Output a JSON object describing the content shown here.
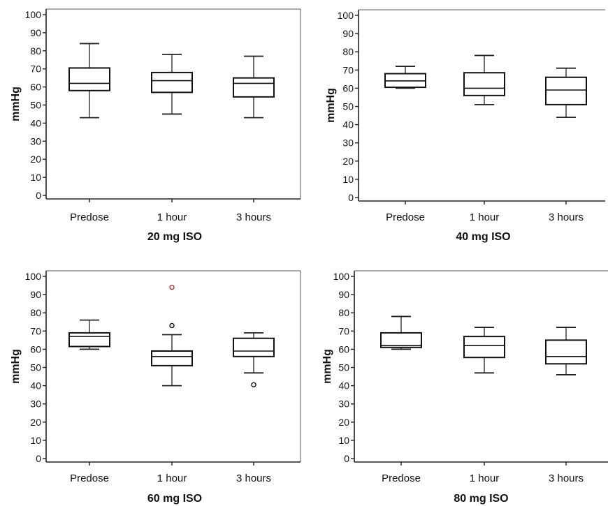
{
  "chart_data": [
    {
      "type": "box",
      "title": "20 mg ISO",
      "ylabel": "mmHg",
      "ylim": [
        0,
        100
      ],
      "yticks": [
        0,
        10,
        20,
        30,
        40,
        50,
        60,
        70,
        80,
        90,
        100
      ],
      "categories": [
        "Predose",
        "1 hour",
        "3 hours"
      ],
      "boxes": [
        {
          "min": 43,
          "q1": 58,
          "median": 62,
          "q3": 70.5,
          "max": 84,
          "outliers": []
        },
        {
          "min": 45,
          "q1": 57,
          "median": 63.5,
          "q3": 68,
          "max": 78,
          "outliers": []
        },
        {
          "min": 43,
          "q1": 54.5,
          "median": 62,
          "q3": 65,
          "max": 77,
          "outliers": []
        }
      ]
    },
    {
      "type": "box",
      "title": "40 mg ISO",
      "ylabel": "mmHg",
      "ylim": [
        0,
        100
      ],
      "yticks": [
        0,
        10,
        20,
        30,
        40,
        50,
        60,
        70,
        80,
        90,
        100
      ],
      "categories": [
        "Predose",
        "1 hour",
        "3 hours"
      ],
      "boxes": [
        {
          "min": 60,
          "q1": 60.5,
          "median": 64,
          "q3": 68,
          "max": 72,
          "outliers": []
        },
        {
          "min": 51,
          "q1": 56,
          "median": 60,
          "q3": 68.5,
          "max": 78,
          "outliers": []
        },
        {
          "min": 44,
          "q1": 51,
          "median": 59,
          "q3": 66,
          "max": 71,
          "outliers": []
        }
      ]
    },
    {
      "type": "box",
      "title": "60 mg ISO",
      "ylabel": "mmHg",
      "ylim": [
        0,
        100
      ],
      "yticks": [
        0,
        10,
        20,
        30,
        40,
        50,
        60,
        70,
        80,
        90,
        100
      ],
      "categories": [
        "Predose",
        "1 hour",
        "3 hours"
      ],
      "boxes": [
        {
          "min": 60,
          "q1": 61.5,
          "median": 67,
          "q3": 69,
          "max": 76,
          "outliers": []
        },
        {
          "min": 40,
          "q1": 51,
          "median": 56,
          "q3": 59,
          "max": 68,
          "outliers": [
            {
              "value": 73,
              "color": "#111111"
            },
            {
              "value": 94,
              "color": "#9b3b3b"
            }
          ]
        },
        {
          "min": 47,
          "q1": 56,
          "median": 59,
          "q3": 66,
          "max": 69,
          "outliers": [
            {
              "value": 40.5,
              "color": "#111111"
            }
          ]
        }
      ]
    },
    {
      "type": "box",
      "title": "80 mg ISO",
      "ylabel": "mmHg",
      "ylim": [
        0,
        100
      ],
      "yticks": [
        0,
        10,
        20,
        30,
        40,
        50,
        60,
        70,
        80,
        90,
        100
      ],
      "categories": [
        "Predose",
        "1 hour",
        "3 hours"
      ],
      "boxes": [
        {
          "min": 60,
          "q1": 61,
          "median": 62,
          "q3": 69,
          "max": 78,
          "outliers": []
        },
        {
          "min": 47,
          "q1": 55.5,
          "median": 62,
          "q3": 67,
          "max": 72,
          "outliers": []
        },
        {
          "min": 46,
          "q1": 52,
          "median": 56,
          "q3": 65,
          "max": 72,
          "outliers": []
        }
      ]
    }
  ]
}
